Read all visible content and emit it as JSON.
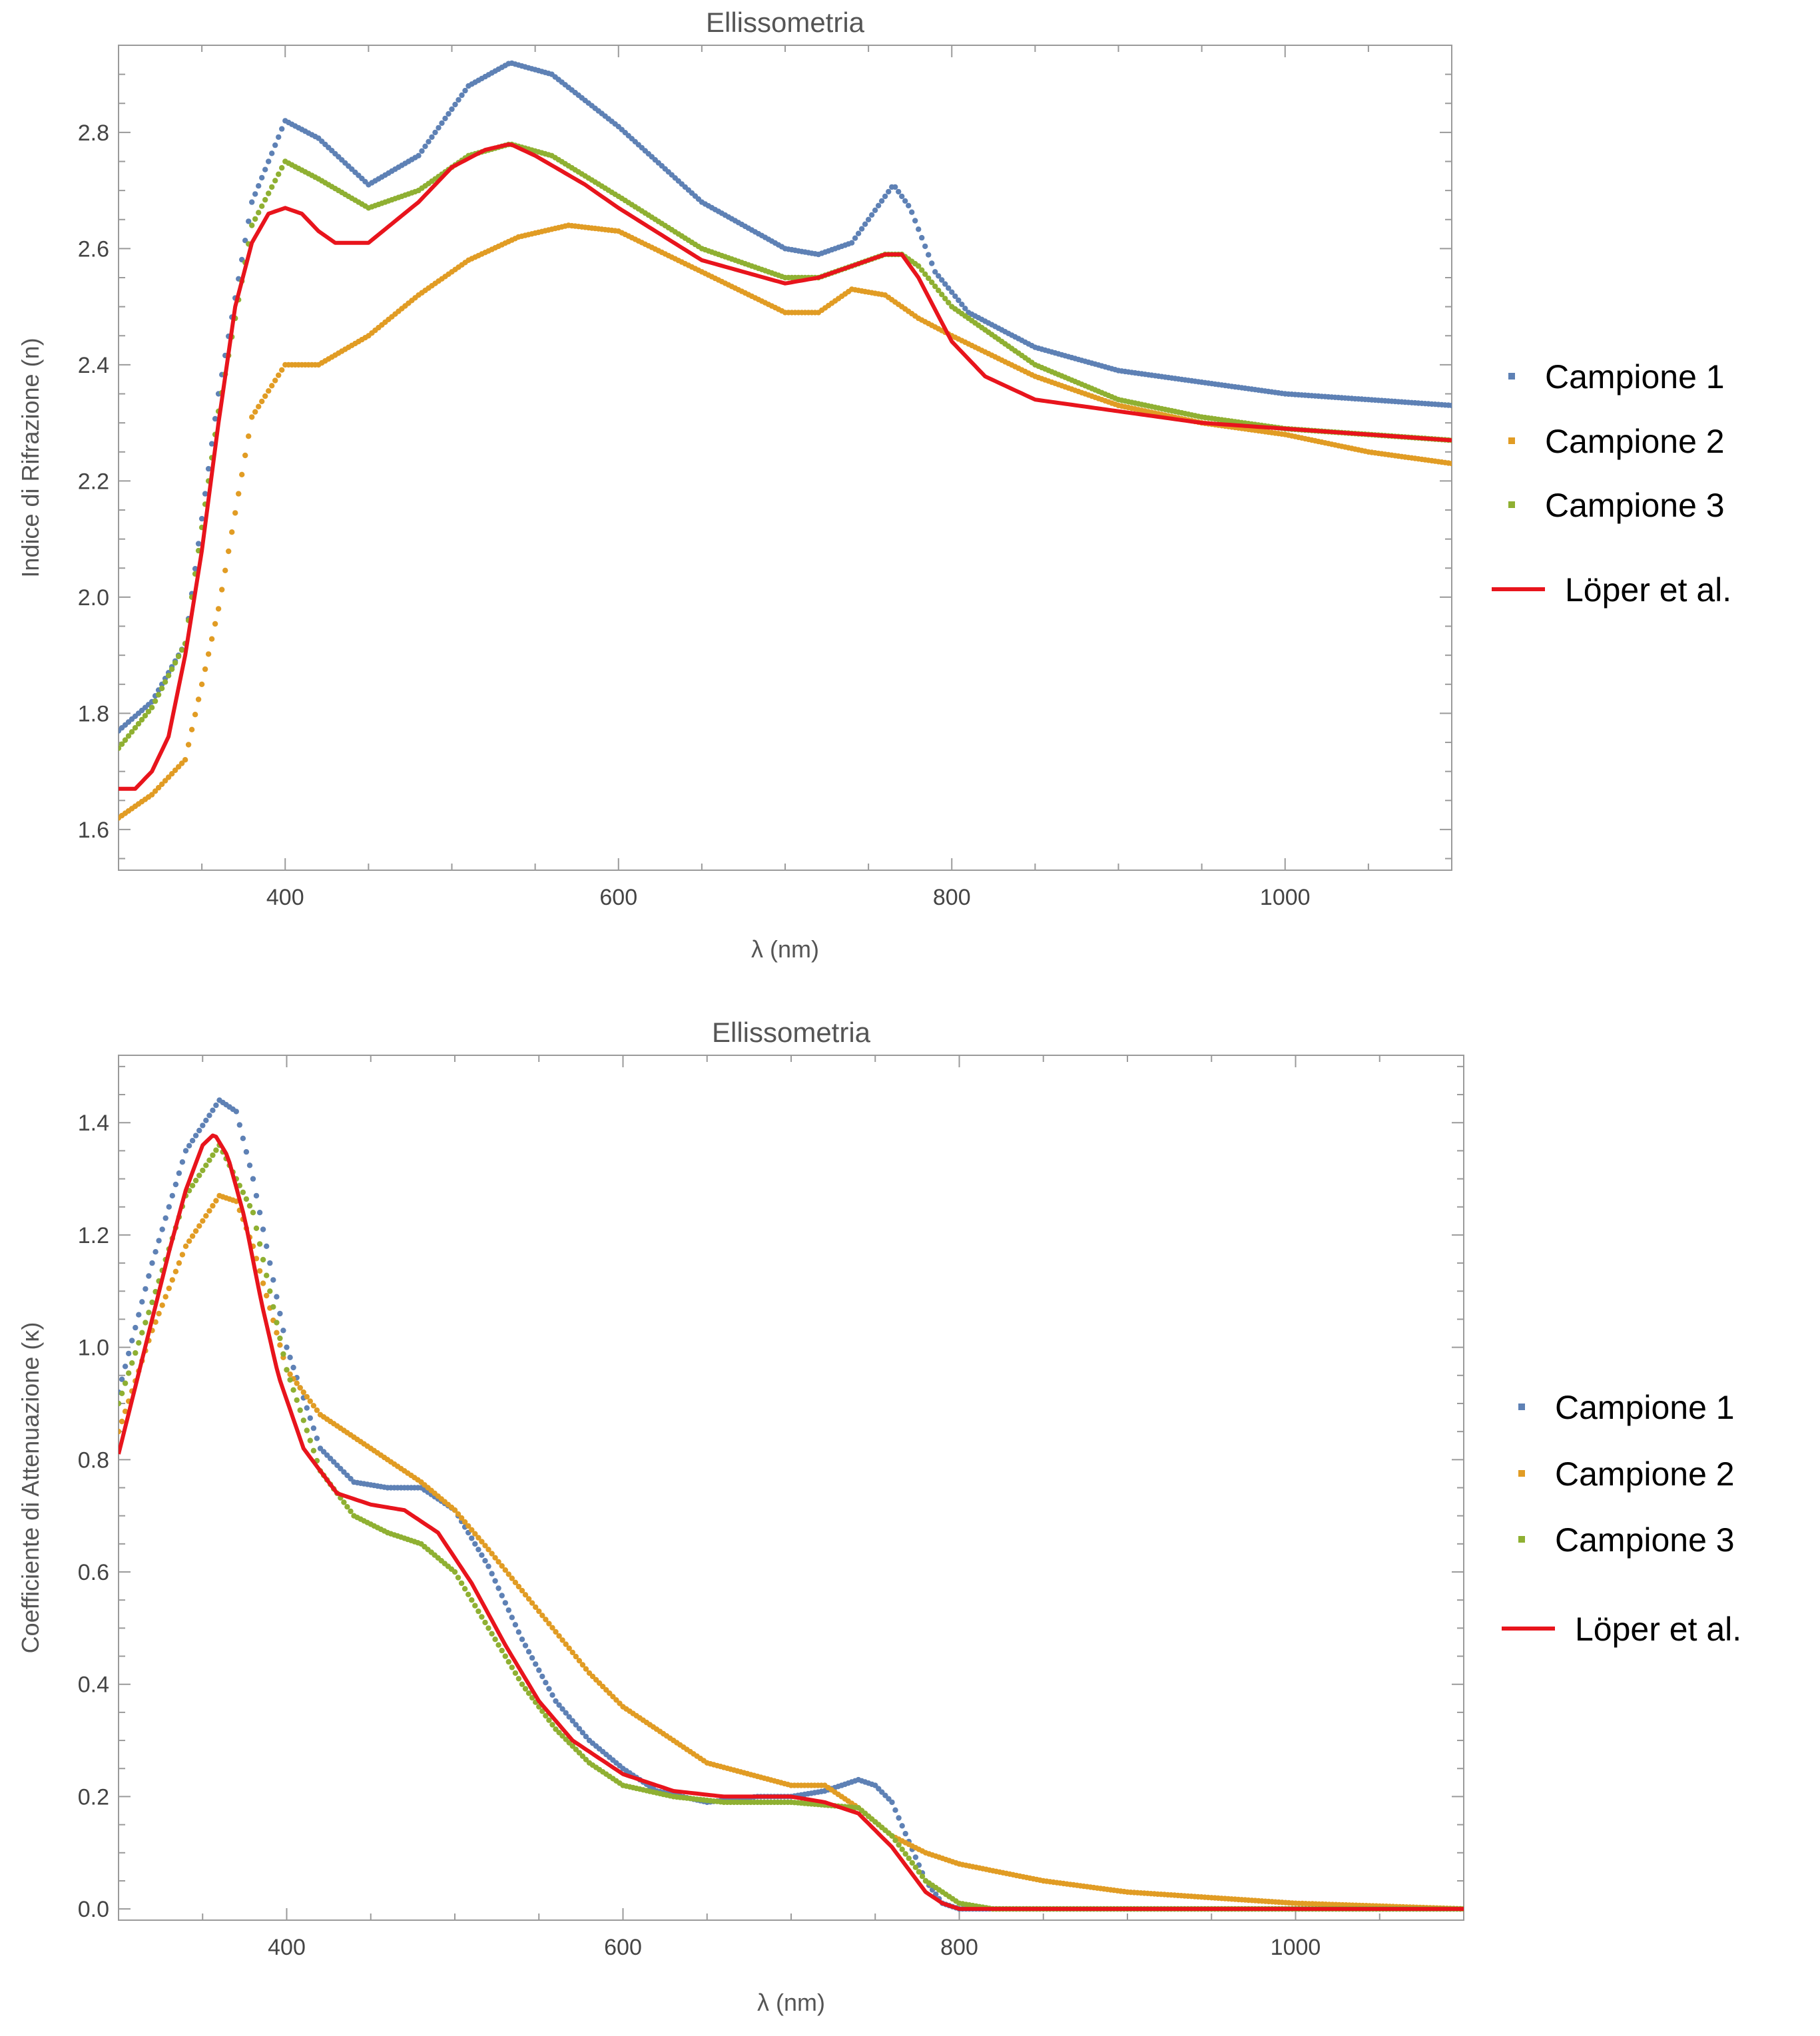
{
  "chart_data": [
    {
      "type": "scatter",
      "title": "Ellissometria",
      "xlabel": "λ (nm)",
      "ylabel": "Indice di Rifrazione (n)",
      "xlim": [
        300,
        1100
      ],
      "ylim": [
        1.53,
        2.95
      ],
      "xticks": [
        "400",
        "600",
        "800",
        "1000"
      ],
      "yticks": [
        "1.6",
        "1.8",
        "2.0",
        "2.2",
        "2.4",
        "2.6",
        "2.8"
      ],
      "grid": false,
      "legend_position": "right",
      "series": [
        {
          "name": "Campione 1",
          "style": "dots",
          "color": "#5E81B5",
          "x": [
            300,
            320,
            340,
            360,
            380,
            400,
            420,
            450,
            480,
            510,
            535,
            560,
            600,
            650,
            700,
            720,
            740,
            755,
            765,
            775,
            790,
            810,
            850,
            900,
            950,
            1000,
            1050,
            1100
          ],
          "y": [
            1.77,
            1.82,
            1.92,
            2.35,
            2.68,
            2.82,
            2.79,
            2.71,
            2.76,
            2.88,
            2.92,
            2.9,
            2.81,
            2.68,
            2.6,
            2.59,
            2.61,
            2.67,
            2.71,
            2.67,
            2.56,
            2.49,
            2.43,
            2.39,
            2.37,
            2.35,
            2.34,
            2.33
          ]
        },
        {
          "name": "Campione 2",
          "style": "dots",
          "color": "#E19C24",
          "x": [
            300,
            320,
            340,
            360,
            380,
            400,
            420,
            450,
            480,
            510,
            540,
            570,
            600,
            650,
            700,
            720,
            740,
            760,
            780,
            800,
            850,
            900,
            950,
            1000,
            1050,
            1100
          ],
          "y": [
            1.62,
            1.66,
            1.72,
            1.98,
            2.31,
            2.4,
            2.4,
            2.45,
            2.52,
            2.58,
            2.62,
            2.64,
            2.63,
            2.56,
            2.49,
            2.49,
            2.53,
            2.52,
            2.48,
            2.45,
            2.38,
            2.33,
            2.3,
            2.28,
            2.25,
            2.23
          ]
        },
        {
          "name": "Campione 3",
          "style": "dots",
          "color": "#8FB032",
          "x": [
            300,
            320,
            340,
            360,
            380,
            400,
            420,
            450,
            480,
            510,
            535,
            560,
            600,
            650,
            700,
            720,
            740,
            760,
            770,
            780,
            800,
            850,
            900,
            950,
            1000,
            1050,
            1100
          ],
          "y": [
            1.74,
            1.81,
            1.92,
            2.32,
            2.64,
            2.75,
            2.72,
            2.67,
            2.7,
            2.76,
            2.78,
            2.76,
            2.69,
            2.6,
            2.55,
            2.55,
            2.57,
            2.59,
            2.59,
            2.57,
            2.5,
            2.4,
            2.34,
            2.31,
            2.29,
            2.28,
            2.27
          ]
        },
        {
          "name": "Löper et al.",
          "style": "line",
          "color": "#E8141C",
          "x": [
            300,
            310,
            320,
            330,
            340,
            350,
            360,
            370,
            380,
            390,
            400,
            410,
            420,
            430,
            450,
            480,
            500,
            520,
            535,
            550,
            580,
            600,
            650,
            700,
            720,
            740,
            760,
            770,
            780,
            800,
            820,
            850,
            900,
            950,
            1000,
            1050,
            1100
          ],
          "y": [
            1.67,
            1.67,
            1.7,
            1.76,
            1.9,
            2.08,
            2.3,
            2.5,
            2.61,
            2.66,
            2.67,
            2.66,
            2.63,
            2.61,
            2.61,
            2.68,
            2.74,
            2.77,
            2.78,
            2.76,
            2.71,
            2.67,
            2.58,
            2.54,
            2.55,
            2.57,
            2.59,
            2.59,
            2.55,
            2.44,
            2.38,
            2.34,
            2.32,
            2.3,
            2.29,
            2.28,
            2.27
          ]
        }
      ]
    },
    {
      "type": "scatter",
      "title": "Ellissometria",
      "xlabel": "λ (nm)",
      "ylabel": "Coefficiente di Attenuazione (κ)",
      "xlim": [
        300,
        1100
      ],
      "ylim": [
        -0.02,
        1.52
      ],
      "xticks": [
        "400",
        "600",
        "800",
        "1000"
      ],
      "yticks": [
        "0.0",
        "0.2",
        "0.4",
        "0.6",
        "0.8",
        "1.0",
        "1.2",
        "1.4"
      ],
      "grid": false,
      "legend_position": "right",
      "series": [
        {
          "name": "Campione 1",
          "style": "dots",
          "color": "#5E81B5",
          "x": [
            300,
            320,
            340,
            360,
            370,
            380,
            400,
            420,
            440,
            460,
            480,
            500,
            520,
            540,
            560,
            580,
            600,
            620,
            650,
            680,
            700,
            720,
            740,
            750,
            760,
            770,
            780,
            790,
            800,
            850,
            900,
            1000,
            1100
          ],
          "y": [
            0.92,
            1.15,
            1.35,
            1.44,
            1.42,
            1.3,
            1.0,
            0.82,
            0.76,
            0.75,
            0.75,
            0.71,
            0.61,
            0.48,
            0.37,
            0.3,
            0.25,
            0.21,
            0.19,
            0.2,
            0.2,
            0.21,
            0.23,
            0.22,
            0.19,
            0.12,
            0.05,
            0.01,
            0.0,
            0.0,
            0.0,
            0.0,
            0.0
          ]
        },
        {
          "name": "Campione 2",
          "style": "dots",
          "color": "#E19C24",
          "x": [
            300,
            320,
            340,
            360,
            370,
            380,
            400,
            420,
            450,
            480,
            500,
            520,
            550,
            580,
            600,
            650,
            700,
            720,
            740,
            760,
            780,
            800,
            850,
            900,
            950,
            1000,
            1050,
            1100
          ],
          "y": [
            0.85,
            1.03,
            1.18,
            1.27,
            1.26,
            1.18,
            0.96,
            0.88,
            0.82,
            0.76,
            0.71,
            0.64,
            0.53,
            0.42,
            0.36,
            0.26,
            0.22,
            0.22,
            0.18,
            0.13,
            0.1,
            0.08,
            0.05,
            0.03,
            0.02,
            0.01,
            0.005,
            0.0
          ]
        },
        {
          "name": "Campione 3",
          "style": "dots",
          "color": "#8FB032",
          "x": [
            300,
            320,
            340,
            360,
            380,
            400,
            420,
            440,
            460,
            480,
            500,
            520,
            540,
            560,
            580,
            600,
            630,
            660,
            700,
            740,
            760,
            780,
            800,
            820,
            900,
            1000,
            1100
          ],
          "y": [
            0.9,
            1.08,
            1.27,
            1.36,
            1.24,
            0.96,
            0.78,
            0.7,
            0.67,
            0.65,
            0.6,
            0.5,
            0.4,
            0.32,
            0.26,
            0.22,
            0.2,
            0.19,
            0.19,
            0.18,
            0.13,
            0.05,
            0.01,
            0.0,
            0.0,
            0.0,
            0.0
          ]
        },
        {
          "name": "Löper et al.",
          "style": "line",
          "color": "#E8141C",
          "x": [
            300,
            310,
            320,
            330,
            340,
            350,
            357,
            365,
            375,
            385,
            395,
            410,
            430,
            450,
            470,
            490,
            510,
            530,
            550,
            570,
            600,
            630,
            660,
            700,
            720,
            740,
            760,
            770,
            780,
            790,
            800,
            820,
            850,
            900,
            1000,
            1100
          ],
          "y": [
            0.81,
            0.93,
            1.05,
            1.17,
            1.28,
            1.36,
            1.38,
            1.34,
            1.23,
            1.08,
            0.95,
            0.82,
            0.74,
            0.72,
            0.71,
            0.67,
            0.58,
            0.47,
            0.37,
            0.3,
            0.24,
            0.21,
            0.2,
            0.2,
            0.19,
            0.17,
            0.11,
            0.07,
            0.03,
            0.01,
            0.0,
            0.0,
            0.0,
            0.0,
            0.0,
            0.0
          ]
        }
      ]
    }
  ]
}
